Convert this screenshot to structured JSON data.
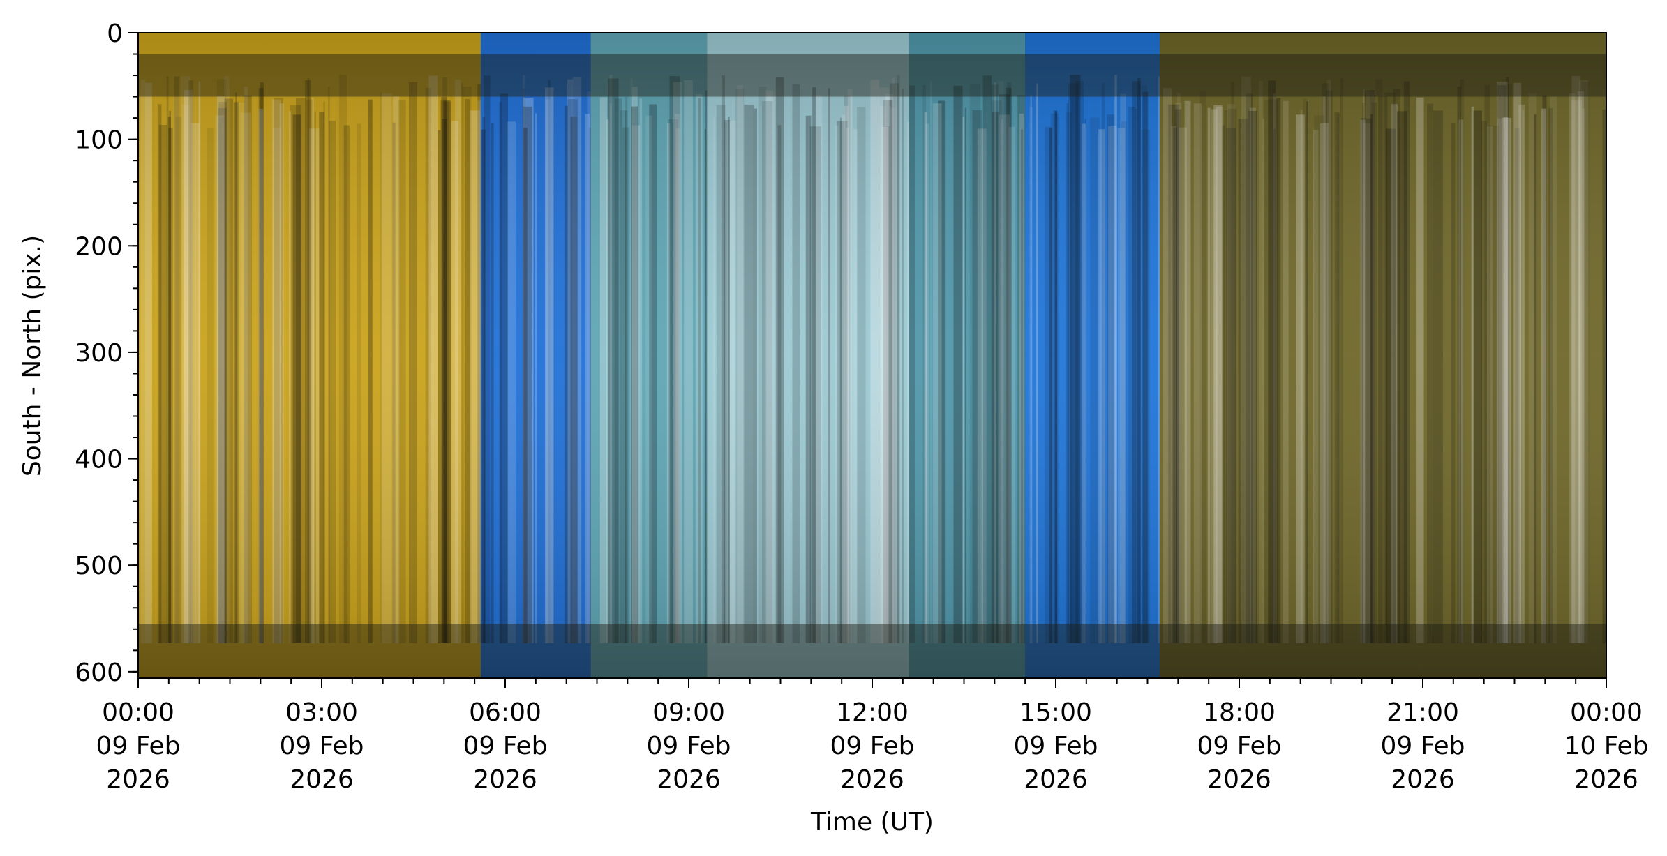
{
  "chart_data": {
    "type": "heatmap",
    "title": "",
    "xlabel": "Time (UT)",
    "ylabel": "South - North (pix.)",
    "xlim_hours": [
      0,
      24
    ],
    "ylim": [
      606,
      0
    ],
    "y_inverted": true,
    "x_ticks": [
      {
        "hour": 0,
        "time": "00:00",
        "day": "09 Feb",
        "year": "2026"
      },
      {
        "hour": 3,
        "time": "03:00",
        "day": "09 Feb",
        "year": "2026"
      },
      {
        "hour": 6,
        "time": "06:00",
        "day": "09 Feb",
        "year": "2026"
      },
      {
        "hour": 9,
        "time": "09:00",
        "day": "09 Feb",
        "year": "2026"
      },
      {
        "hour": 12,
        "time": "12:00",
        "day": "09 Feb",
        "year": "2026"
      },
      {
        "hour": 15,
        "time": "15:00",
        "day": "09 Feb",
        "year": "2026"
      },
      {
        "hour": 18,
        "time": "18:00",
        "day": "09 Feb",
        "year": "2026"
      },
      {
        "hour": 21,
        "time": "21:00",
        "day": "09 Feb",
        "year": "2026"
      },
      {
        "hour": 24,
        "time": "00:00",
        "day": "10 Feb",
        "year": "2026"
      }
    ],
    "y_ticks": [
      0,
      100,
      200,
      300,
      400,
      500,
      600
    ],
    "y_minor_step": 20,
    "x_minor_step_hours": 0.5,
    "color_segments": [
      {
        "start": 0.0,
        "end": 5.6,
        "tone": "yellow",
        "color": "#c9a21a"
      },
      {
        "start": 5.6,
        "end": 7.4,
        "tone": "blue",
        "color": "#1f6fd6"
      },
      {
        "start": 7.4,
        "end": 9.3,
        "tone": "teal",
        "color": "#5ea5b4"
      },
      {
        "start": 9.3,
        "end": 12.6,
        "tone": "pale-cyan",
        "color": "#9cc9d2"
      },
      {
        "start": 12.6,
        "end": 14.5,
        "tone": "teal",
        "color": "#4f97aa"
      },
      {
        "start": 14.5,
        "end": 16.7,
        "tone": "blue",
        "color": "#1e74d8"
      },
      {
        "start": 16.7,
        "end": 24.0,
        "tone": "olive-yellow",
        "color": "#6e6628"
      }
    ],
    "dark_bands_pix": [
      [
        20,
        60
      ],
      [
        555,
        610
      ]
    ]
  }
}
